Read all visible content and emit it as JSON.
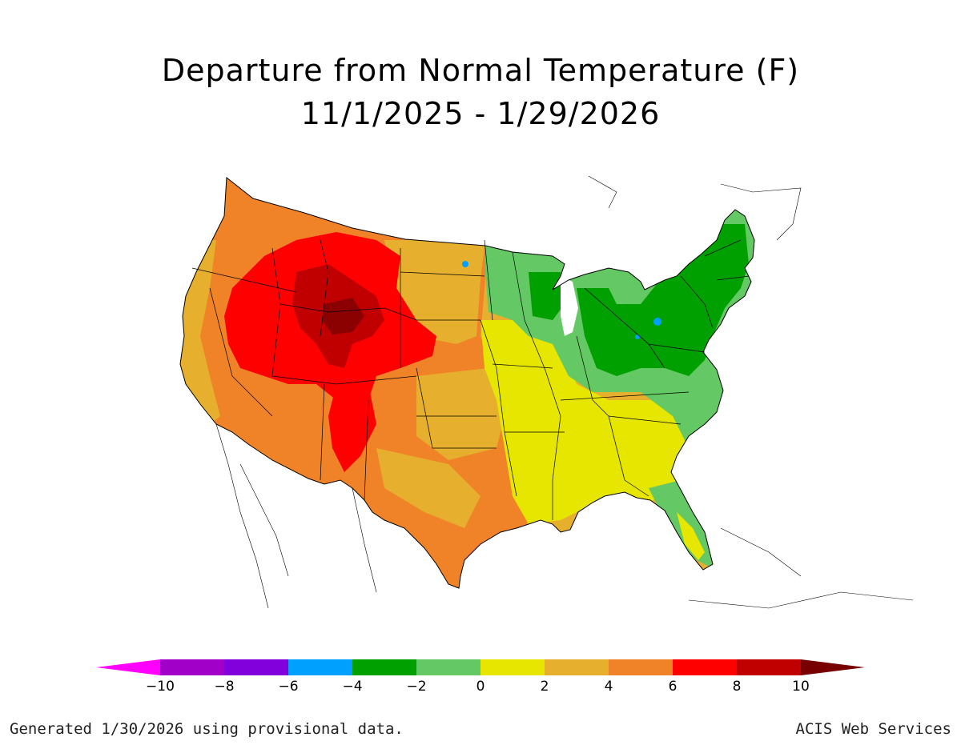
{
  "title": {
    "line1": "Departure from Normal Temperature (F)",
    "line2": "11/1/2025 - 1/29/2026"
  },
  "map": {
    "region": "Contiguous United States",
    "variable": "Temperature departure from normal",
    "units": "F",
    "regions_shaded": [
      {
        "area": "Northern Rockies / Wyoming / Utah / Colorado",
        "range": "6 to 10",
        "color": "#ff0000"
      },
      {
        "area": "Central Wyoming / NW Colorado core",
        "range": "8 to 10",
        "color": "#c00000"
      },
      {
        "area": "Great Basin / Southwest / High Plains / Texas",
        "range": "4 to 6",
        "color": "#f08228"
      },
      {
        "area": "Pacific Coast / Northern Plains / Oklahoma",
        "range": "2 to 4",
        "color": "#e6af2d"
      },
      {
        "area": "Southeast / Gulf Coast / Mid-Mississippi Valley",
        "range": "0 to 2",
        "color": "#e6e600"
      },
      {
        "area": "Midwest / Upper Mississippi / Florida / Carolinas coast",
        "range": "-2 to 0",
        "color": "#64c864"
      },
      {
        "area": "Great Lakes / Ohio Valley / Northeast / Mid-Atlantic",
        "range": "-4 to -2",
        "color": "#00a000"
      }
    ]
  },
  "legend": {
    "ticks": [
      "-10",
      "-8",
      "-6",
      "-4",
      "-2",
      "0",
      "2",
      "4",
      "6",
      "8",
      "10"
    ],
    "colors": [
      "#ff00ff",
      "#a000c8",
      "#8200dc",
      "#00a0ff",
      "#00a000",
      "#64c864",
      "#e6e600",
      "#e6af2d",
      "#f08228",
      "#ff0000",
      "#c00000",
      "#780000"
    ]
  },
  "footer": {
    "left": "Generated 1/30/2026 using provisional data.",
    "right": "ACIS Web Services"
  }
}
